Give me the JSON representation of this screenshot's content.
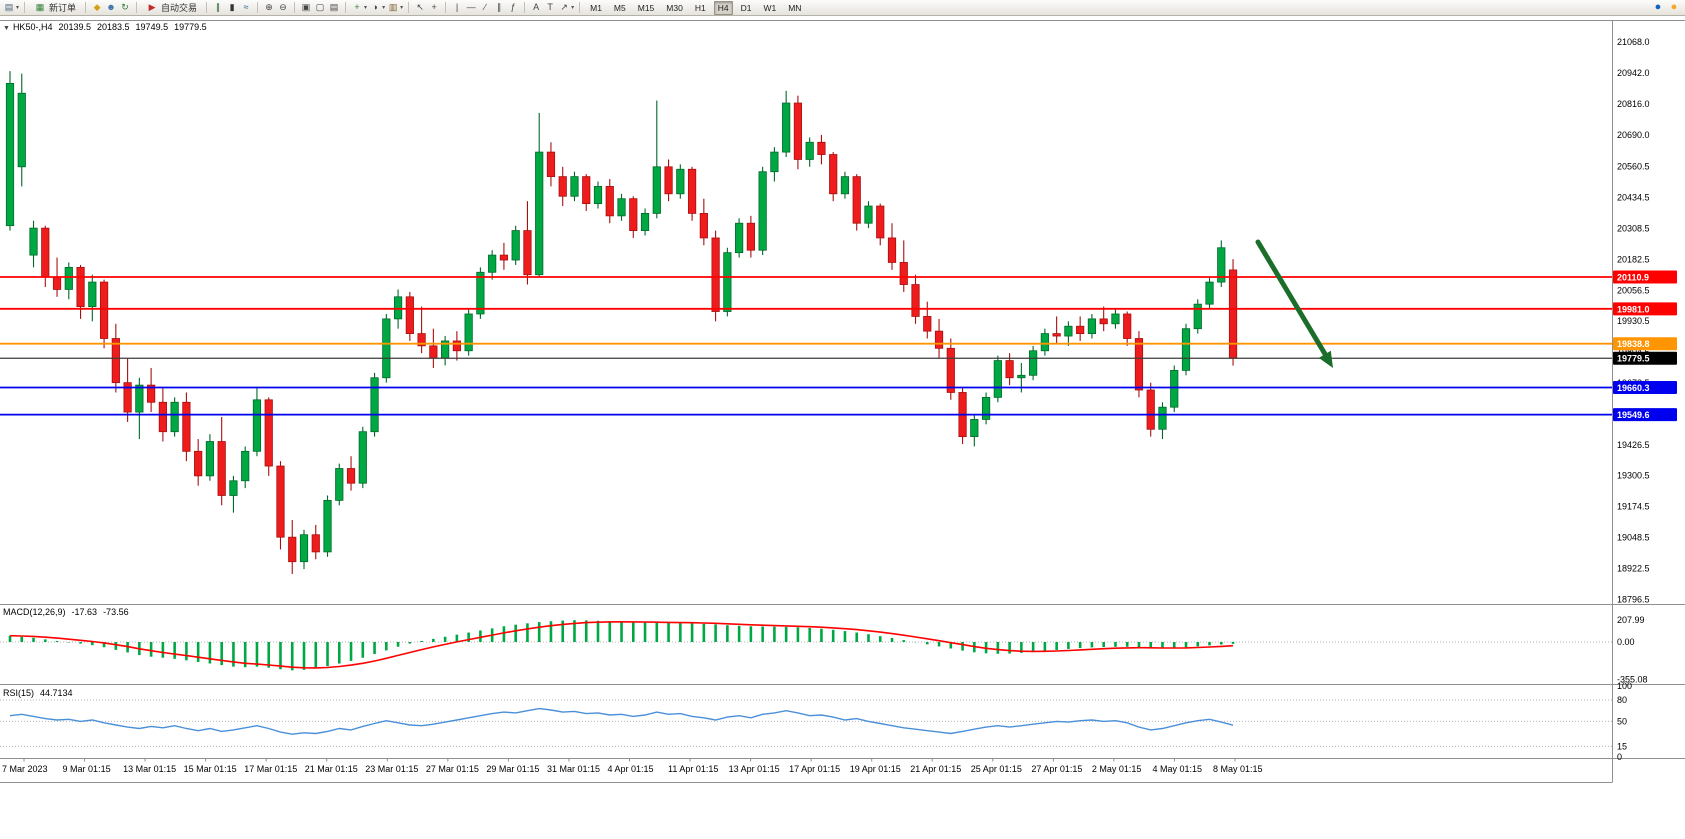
{
  "toolbar": {
    "groups": [
      {
        "icons": [
          {
            "name": "new-chart-icon",
            "glyph": "▤",
            "color": "#44627a"
          },
          {
            "name": "new-chart-caret",
            "glyph": "▾",
            "color": "#555"
          }
        ]
      },
      {
        "button": {
          "name": "new-order-button",
          "label": "新订单",
          "icon": {
            "name": "new-order-icon",
            "glyph": "▦",
            "color": "#2e7d32"
          }
        }
      },
      {
        "icons": [
          {
            "name": "favorites-icon",
            "glyph": "◆",
            "color": "#d4a017"
          },
          {
            "name": "profile-icon",
            "glyph": "☻",
            "color": "#3a6ea5"
          },
          {
            "name": "refresh-icon",
            "glyph": "↻",
            "color": "#2e7d32"
          }
        ]
      },
      {
        "button": {
          "name": "auto-trading-button",
          "label": "自动交易",
          "icon": {
            "name": "auto-trading-icon",
            "glyph": "▶",
            "color": "#c62828"
          }
        }
      },
      {
        "icons": [
          {
            "name": "bar-chart-icon",
            "glyph": "∥",
            "color": "#2a5d2a"
          },
          {
            "name": "candlestick-icon",
            "glyph": "▮",
            "color": "#333"
          },
          {
            "name": "line-chart-icon",
            "glyph": "≈",
            "color": "#2a5d8f"
          }
        ]
      },
      {
        "icons": [
          {
            "name": "zoom-in-icon",
            "glyph": "⊕",
            "color": "#444"
          },
          {
            "name": "zoom-out-icon",
            "glyph": "⊖",
            "color": "#444"
          }
        ]
      },
      {
        "icons": [
          {
            "name": "tile-windows-icon",
            "glyph": "▣",
            "color": "#444"
          },
          {
            "name": "cascade-windows-icon",
            "glyph": "▢",
            "color": "#444"
          },
          {
            "name": "arrange-windows-icon",
            "glyph": "▤",
            "color": "#444"
          }
        ]
      },
      {
        "icons": [
          {
            "name": "indicators-icon",
            "glyph": "+",
            "color": "#2e7d32"
          },
          {
            "name": "indicators-caret",
            "glyph": "▾",
            "color": "#555"
          },
          {
            "name": "periods-icon",
            "glyph": "◑",
            "color": "#444"
          },
          {
            "name": "periods-caret",
            "glyph": "▾",
            "color": "#555"
          },
          {
            "name": "templates-icon",
            "glyph": "▥",
            "color": "#7a5c2e"
          },
          {
            "name": "templates-caret",
            "glyph": "▾",
            "color": "#555"
          }
        ]
      },
      {
        "icons": [
          {
            "name": "cursor-icon",
            "glyph": "↖",
            "color": "#444"
          },
          {
            "name": "crosshair-icon",
            "glyph": "+",
            "color": "#444"
          }
        ]
      },
      {
        "icons": [
          {
            "name": "vline-icon",
            "glyph": "|",
            "color": "#444"
          },
          {
            "name": "hline-icon",
            "glyph": "—",
            "color": "#444"
          },
          {
            "name": "trendline-icon",
            "glyph": "∕",
            "color": "#444"
          },
          {
            "name": "channel-icon",
            "glyph": "∥",
            "color": "#444"
          },
          {
            "name": "fibonacci-icon",
            "glyph": "ƒ",
            "color": "#444"
          }
        ]
      },
      {
        "icons": [
          {
            "name": "text-icon",
            "glyph": "A",
            "color": "#444"
          },
          {
            "name": "label-icon",
            "glyph": "T",
            "color": "#444"
          },
          {
            "name": "arrows-icon",
            "glyph": "↗",
            "color": "#444"
          },
          {
            "name": "arrows-caret",
            "glyph": "▾",
            "color": "#555"
          }
        ]
      },
      {
        "timeframes": true
      }
    ],
    "timeframes": [
      "M1",
      "M5",
      "M15",
      "M30",
      "H1",
      "H4",
      "D1",
      "W1",
      "MN"
    ],
    "active_timeframe": "H4",
    "right_icons": [
      {
        "name": "community-icon",
        "glyph": "●",
        "color": "#1565c0"
      },
      {
        "name": "alerts-icon",
        "glyph": "●",
        "color": "#f9a825"
      }
    ]
  },
  "chart": {
    "collapse_glyph": "▼",
    "symbol_period": "HK50-,H4",
    "open": "20139.5",
    "high": "20183.5",
    "low": "19749.5",
    "close": "19779.5"
  },
  "indicators": {
    "macd": {
      "label": "MACD(12,26,9)",
      "macd_value": "-17.63",
      "signal_value": "-73.56"
    },
    "rsi": {
      "label": "RSI(15)",
      "value": "44.7134"
    }
  },
  "chart_data": {
    "type": "candlestick",
    "symbol": "HK50-",
    "timeframe": "H4",
    "colors": {
      "bull": "#00a843",
      "bear": "#ee1c1c",
      "bull_edge": "#00692a",
      "bear_edge": "#a80f0f",
      "macd_hist": "#00a843",
      "macd_signal": "#ff0000",
      "rsi_line": "#4a90d9",
      "line_red": "#ff0000",
      "line_orange": "#ff9500",
      "line_blue": "#0000ee",
      "line_current": "#3c3c3c",
      "arrow": "#1b6e2a"
    },
    "candles": [
      [
        20320,
        20950,
        20300,
        20900
      ],
      [
        20560,
        20940,
        20480,
        20860
      ],
      [
        20200,
        20340,
        20150,
        20310
      ],
      [
        20310,
        20320,
        20070,
        20110
      ],
      [
        20110,
        20190,
        20030,
        20060
      ],
      [
        20060,
        20170,
        20020,
        20150
      ],
      [
        20150,
        20160,
        19940,
        19990
      ],
      [
        19990,
        20120,
        19930,
        20090
      ],
      [
        20090,
        20100,
        19820,
        19860
      ],
      [
        19860,
        19920,
        19640,
        19680
      ],
      [
        19680,
        19780,
        19520,
        19560
      ],
      [
        19560,
        19700,
        19450,
        19670
      ],
      [
        19670,
        19740,
        19560,
        19600
      ],
      [
        19600,
        19660,
        19440,
        19480
      ],
      [
        19480,
        19620,
        19460,
        19600
      ],
      [
        19600,
        19640,
        19360,
        19400
      ],
      [
        19400,
        19450,
        19260,
        19300
      ],
      [
        19300,
        19470,
        19280,
        19440
      ],
      [
        19440,
        19540,
        19180,
        19220
      ],
      [
        19220,
        19300,
        19150,
        19280
      ],
      [
        19280,
        19420,
        19250,
        19400
      ],
      [
        19400,
        19660,
        19380,
        19610
      ],
      [
        19610,
        19620,
        19300,
        19340
      ],
      [
        19340,
        19360,
        19000,
        19050
      ],
      [
        19050,
        19120,
        18900,
        18950
      ],
      [
        18950,
        19080,
        18920,
        19060
      ],
      [
        19060,
        19100,
        18960,
        18990
      ],
      [
        18990,
        19220,
        18970,
        19200
      ],
      [
        19200,
        19350,
        19180,
        19330
      ],
      [
        19330,
        19380,
        19240,
        19270
      ],
      [
        19270,
        19500,
        19250,
        19480
      ],
      [
        19480,
        19720,
        19460,
        19700
      ],
      [
        19700,
        19960,
        19680,
        19940
      ],
      [
        19940,
        20060,
        19900,
        20030
      ],
      [
        20030,
        20050,
        19850,
        19880
      ],
      [
        19880,
        19990,
        19800,
        19830
      ],
      [
        19830,
        19900,
        19740,
        19780
      ],
      [
        19780,
        19870,
        19750,
        19850
      ],
      [
        19850,
        19890,
        19770,
        19810
      ],
      [
        19810,
        19980,
        19790,
        19960
      ],
      [
        19960,
        20150,
        19940,
        20130
      ],
      [
        20130,
        20220,
        20100,
        20200
      ],
      [
        20200,
        20250,
        20140,
        20180
      ],
      [
        20180,
        20320,
        20160,
        20300
      ],
      [
        20300,
        20420,
        20080,
        20120
      ],
      [
        20120,
        20780,
        20110,
        20620
      ],
      [
        20620,
        20660,
        20480,
        20520
      ],
      [
        20520,
        20560,
        20400,
        20440
      ],
      [
        20440,
        20540,
        20420,
        20520
      ],
      [
        20520,
        20530,
        20380,
        20410
      ],
      [
        20410,
        20500,
        20390,
        20480
      ],
      [
        20480,
        20510,
        20330,
        20360
      ],
      [
        20360,
        20450,
        20340,
        20430
      ],
      [
        20430,
        20440,
        20270,
        20300
      ],
      [
        20300,
        20390,
        20280,
        20370
      ],
      [
        20370,
        20830,
        20350,
        20560
      ],
      [
        20560,
        20590,
        20420,
        20450
      ],
      [
        20450,
        20570,
        20430,
        20550
      ],
      [
        20550,
        20560,
        20340,
        20370
      ],
      [
        20370,
        20430,
        20240,
        20270
      ],
      [
        20270,
        20300,
        19930,
        19970
      ],
      [
        19970,
        20230,
        19950,
        20210
      ],
      [
        20210,
        20350,
        20190,
        20330
      ],
      [
        20330,
        20360,
        20190,
        20220
      ],
      [
        20220,
        20560,
        20200,
        20540
      ],
      [
        20540,
        20640,
        20500,
        20620
      ],
      [
        20620,
        20870,
        20600,
        20820
      ],
      [
        20820,
        20850,
        20550,
        20590
      ],
      [
        20590,
        20680,
        20560,
        20660
      ],
      [
        20660,
        20690,
        20570,
        20610
      ],
      [
        20610,
        20620,
        20420,
        20450
      ],
      [
        20450,
        20540,
        20430,
        20520
      ],
      [
        20520,
        20530,
        20300,
        20330
      ],
      [
        20330,
        20420,
        20310,
        20400
      ],
      [
        20400,
        20410,
        20240,
        20270
      ],
      [
        20270,
        20330,
        20140,
        20170
      ],
      [
        20170,
        20260,
        20050,
        20080
      ],
      [
        20080,
        20120,
        19920,
        19950
      ],
      [
        19950,
        20010,
        19860,
        19890
      ],
      [
        19890,
        19940,
        19780,
        19820
      ],
      [
        19820,
        19860,
        19610,
        19640
      ],
      [
        19640,
        19660,
        19430,
        19460
      ],
      [
        19460,
        19550,
        19420,
        19530
      ],
      [
        19530,
        19640,
        19510,
        19620
      ],
      [
        19620,
        19790,
        19600,
        19770
      ],
      [
        19770,
        19800,
        19670,
        19700
      ],
      [
        19700,
        19760,
        19640,
        19710
      ],
      [
        19710,
        19830,
        19690,
        19810
      ],
      [
        19810,
        19900,
        19790,
        19880
      ],
      [
        19880,
        19950,
        19840,
        19870
      ],
      [
        19870,
        19930,
        19830,
        19910
      ],
      [
        19910,
        19950,
        19850,
        19880
      ],
      [
        19880,
        19960,
        19860,
        19940
      ],
      [
        19940,
        19990,
        19890,
        19920
      ],
      [
        19920,
        19980,
        19900,
        19960
      ],
      [
        19960,
        19970,
        19830,
        19860
      ],
      [
        19860,
        19890,
        19620,
        19650
      ],
      [
        19650,
        19680,
        19460,
        19490
      ],
      [
        19490,
        19600,
        19450,
        19580
      ],
      [
        19580,
        19750,
        19560,
        19730
      ],
      [
        19730,
        19920,
        19710,
        19900
      ],
      [
        19900,
        20020,
        19880,
        20000
      ],
      [
        20000,
        20110,
        19980,
        20090
      ],
      [
        20090,
        20260,
        20070,
        20230
      ],
      [
        20139.5,
        20183.5,
        19749.5,
        19779.5
      ]
    ],
    "horizontal_lines": [
      {
        "price": 20110.9,
        "label": "20110.9",
        "kind": "resistance",
        "color": "#ff0000"
      },
      {
        "price": 19981.0,
        "label": "19981.0",
        "kind": "resistance",
        "color": "#ff0000"
      },
      {
        "price": 19838.8,
        "label": "19838.8",
        "kind": "pivot",
        "color": "#ff9500"
      },
      {
        "price": 19779.5,
        "label": "19779.5",
        "kind": "current-price",
        "color": "#3c3c3c"
      },
      {
        "price": 19660.3,
        "label": "19660.3",
        "kind": "support",
        "color": "#0000ee"
      },
      {
        "price": 19549.6,
        "label": "19549.6",
        "kind": "support",
        "color": "#0000ee"
      }
    ],
    "price_axis_labels": [
      21068.0,
      20942.0,
      20816.0,
      20690.0,
      20560.5,
      20434.5,
      20308.5,
      20182.5,
      20056.5,
      19930.5,
      19804.5,
      19678.5,
      19552.5,
      19426.5,
      19300.5,
      19174.5,
      19048.5,
      18922.5,
      18796.5
    ],
    "time_axis_labels": [
      "7 Mar 2023",
      "9 Mar 01:15",
      "13 Mar 01:15",
      "15 Mar 01:15",
      "17 Mar 01:15",
      "21 Mar 01:15",
      "23 Mar 01:15",
      "27 Mar 01:15",
      "29 Mar 01:15",
      "31 Mar 01:15",
      "4 Apr 01:15",
      "11 Apr 01:15",
      "13 Apr 01:15",
      "17 Apr 01:15",
      "19 Apr 01:15",
      "21 Apr 01:15",
      "25 Apr 01:15",
      "27 Apr 01:15",
      "2 May 01:15",
      "4 May 01:15",
      "8 May 01:15"
    ],
    "macd": {
      "histogram": [
        60,
        50,
        40,
        25,
        10,
        -5,
        -15,
        -30,
        -50,
        -75,
        -100,
        -125,
        -140,
        -150,
        -160,
        -175,
        -190,
        -205,
        -220,
        -235,
        -240,
        -235,
        -245,
        -260,
        -270,
        -265,
        -250,
        -230,
        -205,
        -180,
        -150,
        -115,
        -80,
        -45,
        -15,
        10,
        30,
        50,
        70,
        90,
        110,
        130,
        150,
        165,
        178,
        190,
        198,
        204,
        208,
        206,
        202,
        198,
        194,
        190,
        186,
        184,
        182,
        180,
        178,
        174,
        168,
        160,
        154,
        150,
        148,
        146,
        144,
        140,
        134,
        126,
        116,
        104,
        90,
        74,
        56,
        38,
        18,
        -2,
        -22,
        -42,
        -62,
        -82,
        -98,
        -108,
        -112,
        -110,
        -104,
        -96,
        -86,
        -76,
        -66,
        -58,
        -52,
        -48,
        -46,
        -46,
        -50,
        -56,
        -62,
        -60,
        -52,
        -42,
        -32,
        -24,
        -17.63
      ],
      "axis": [
        {
          "label": "207.99",
          "value": 207.99
        },
        {
          "label": "0.00",
          "value": 0
        },
        {
          "label": "-355.08",
          "value": -355.08
        }
      ]
    },
    "rsi": {
      "values": [
        58,
        60,
        57,
        54,
        52,
        53,
        50,
        52,
        48,
        45,
        42,
        40,
        43,
        41,
        44,
        40,
        37,
        40,
        36,
        38,
        41,
        44,
        40,
        35,
        32,
        34,
        33,
        36,
        40,
        38,
        43,
        47,
        51,
        48,
        45,
        44,
        46,
        49,
        52,
        55,
        58,
        61,
        63,
        62,
        65,
        68,
        66,
        63,
        64,
        61,
        62,
        59,
        60,
        57,
        59,
        63,
        60,
        61,
        57,
        55,
        52,
        56,
        58,
        55,
        60,
        62,
        65,
        62,
        58,
        59,
        56,
        52,
        54,
        50,
        47,
        44,
        41,
        39,
        37,
        35,
        33,
        36,
        39,
        42,
        44,
        42,
        44,
        46,
        48,
        50,
        49,
        51,
        52,
        50,
        51,
        48,
        42,
        38,
        40,
        44,
        48,
        51,
        53,
        49,
        44.71
      ],
      "levels": [
        80,
        50,
        15
      ],
      "axis": [
        {
          "label": "100",
          "value": 100
        },
        {
          "label": "80",
          "value": 80
        },
        {
          "label": "50",
          "value": 50
        },
        {
          "label": "15",
          "value": 15
        },
        {
          "label": "0",
          "value": 0
        }
      ]
    },
    "annotation_arrow": {
      "color": "#1b6e2a",
      "from_price": 20200,
      "to_price": 19690
    }
  }
}
